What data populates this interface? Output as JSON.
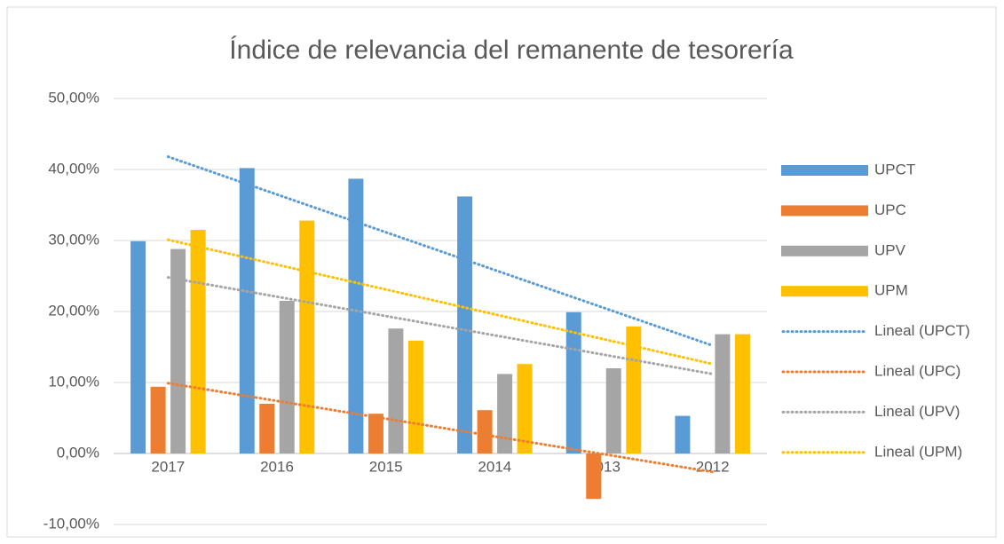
{
  "chart_data": {
    "type": "bar",
    "title": "Índice de relevancia del remanente de tesorería",
    "categories": [
      "2017",
      "2016",
      "2015",
      "2014",
      "2013",
      "2012"
    ],
    "series": [
      {
        "name": "UPCT",
        "color": "#5b9bd5",
        "values": [
          29.9,
          40.2,
          38.7,
          36.2,
          19.9,
          5.3
        ]
      },
      {
        "name": "UPC",
        "color": "#ed7d31",
        "values": [
          9.4,
          7.0,
          5.6,
          6.1,
          -6.4,
          null
        ]
      },
      {
        "name": "UPV",
        "color": "#a5a5a5",
        "values": [
          28.8,
          21.5,
          17.6,
          11.2,
          12.0,
          16.8
        ]
      },
      {
        "name": "UPM",
        "color": "#ffc000",
        "values": [
          31.5,
          32.8,
          15.9,
          12.6,
          17.9,
          16.8
        ]
      }
    ],
    "trendlines": [
      {
        "name": "Lineal (UPCT)",
        "color": "#5b9bd5",
        "values": [
          41.8,
          15.2
        ]
      },
      {
        "name": "Lineal (UPC)",
        "color": "#ed7d31",
        "values": [
          9.9,
          -2.6
        ]
      },
      {
        "name": "Lineal (UPV)",
        "color": "#a5a5a5",
        "values": [
          24.8,
          11.2
        ]
      },
      {
        "name": "Lineal (UPM)",
        "color": "#ffc000",
        "values": [
          30.1,
          12.6
        ]
      }
    ],
    "ylim": [
      -10,
      50
    ],
    "yticks": [
      {
        "value": -10,
        "label": "-10,00%"
      },
      {
        "value": 0,
        "label": "0,00%"
      },
      {
        "value": 10,
        "label": "10,00%"
      },
      {
        "value": 20,
        "label": "20,00%"
      },
      {
        "value": 30,
        "label": "30,00%"
      },
      {
        "value": 40,
        "label": "40,00%"
      },
      {
        "value": 50,
        "label": "50,00%"
      }
    ],
    "grid": true,
    "legend": "right"
  }
}
